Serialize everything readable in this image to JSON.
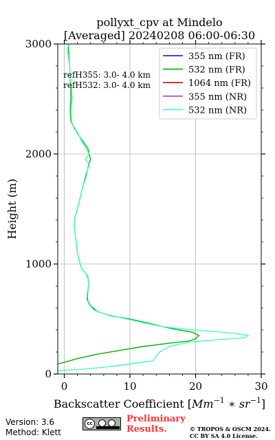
{
  "chart_data": {
    "type": "line",
    "title_line1": "pollyxt_cpv at Mindelo",
    "title_line2": "[Averaged] 20240208 06:00-06:30",
    "xlabel_prefix": "Backscatter Coefficient [",
    "xlabel_math": "Mm",
    "xlabel_exp1": "−1",
    "xlabel_mid": " ∗ ",
    "xlabel_math2": "sr",
    "xlabel_exp2": "−1",
    "xlabel_suffix": "]",
    "ylabel": "Height (m)",
    "xlim": [
      -1,
      30
    ],
    "ylim": [
      0,
      3000
    ],
    "x_ticks": [
      0,
      10,
      20,
      30
    ],
    "x_tick_labels": [
      "0",
      "10",
      "20",
      "30"
    ],
    "y_ticks": [
      0,
      1000,
      2000,
      3000
    ],
    "y_tick_labels": [
      "0",
      "1000",
      "2000",
      "3000"
    ],
    "grid": true,
    "legend_position": "top-right",
    "annotations": [
      "refH355:  3.0- 4.0 km",
      "refH532:  3.0- 4.0 km"
    ],
    "series": [
      {
        "name": "355 nm (FR)",
        "color": "#0000ff",
        "points": []
      },
      {
        "name": "532 nm (FR)",
        "color": "#00b300",
        "points": [
          [
            -1.0,
            90
          ],
          [
            0.2,
            110
          ],
          [
            2.0,
            140
          ],
          [
            5.0,
            180
          ],
          [
            8.0,
            210
          ],
          [
            12.0,
            250
          ],
          [
            16.0,
            280
          ],
          [
            19.0,
            300
          ],
          [
            20.0,
            320
          ],
          [
            20.5,
            350
          ],
          [
            19.5,
            380
          ],
          [
            17.5,
            400
          ],
          [
            15.0,
            430
          ],
          [
            13.0,
            460
          ],
          [
            10.0,
            500
          ],
          [
            7.0,
            530
          ],
          [
            5.0,
            570
          ],
          [
            4.0,
            620
          ],
          [
            3.6,
            660
          ],
          [
            3.5,
            700
          ],
          [
            3.6,
            760
          ],
          [
            3.7,
            820
          ],
          [
            3.6,
            880
          ],
          [
            3.2,
            920
          ],
          [
            2.7,
            950
          ],
          [
            2.4,
            1000
          ],
          [
            2.2,
            1050
          ],
          [
            2.0,
            1100
          ],
          [
            1.8,
            1200
          ],
          [
            1.6,
            1300
          ],
          [
            1.5,
            1350
          ],
          [
            1.6,
            1420
          ],
          [
            2.0,
            1500
          ],
          [
            2.4,
            1600
          ],
          [
            2.8,
            1700
          ],
          [
            3.3,
            1800
          ],
          [
            3.7,
            1900
          ],
          [
            4.0,
            1950
          ],
          [
            3.6,
            2050
          ],
          [
            3.0,
            2100
          ],
          [
            2.4,
            2150
          ],
          [
            1.9,
            2200
          ],
          [
            1.4,
            2250
          ],
          [
            1.0,
            2300
          ],
          [
            0.9,
            2400
          ],
          [
            1.0,
            2500
          ],
          [
            1.0,
            2600
          ],
          [
            0.9,
            2700
          ],
          [
            0.8,
            2800
          ],
          [
            0.7,
            2900
          ],
          [
            0.6,
            3000
          ]
        ]
      },
      {
        "name": "1064 nm (FR)",
        "color": "#dd0000",
        "points": []
      },
      {
        "name": "355 nm (NR)",
        "color": "#a040e0",
        "points": []
      },
      {
        "name": "532 nm (NR)",
        "color": "#40ffc0",
        "points": [
          [
            -1.0,
            30
          ],
          [
            2.0,
            40
          ],
          [
            5.0,
            55
          ],
          [
            8.0,
            75
          ],
          [
            11.0,
            100
          ],
          [
            13.5,
            120
          ],
          [
            14.0,
            160
          ],
          [
            14.5,
            200
          ],
          [
            16.0,
            250
          ],
          [
            19.0,
            290
          ],
          [
            23.0,
            310
          ],
          [
            27.5,
            330
          ],
          [
            28.0,
            350
          ],
          [
            26.0,
            370
          ],
          [
            22.0,
            390
          ],
          [
            18.0,
            410
          ],
          [
            15.0,
            430
          ],
          [
            12.5,
            460
          ],
          [
            9.5,
            500
          ],
          [
            6.5,
            540
          ],
          [
            4.5,
            580
          ],
          [
            3.8,
            630
          ],
          [
            3.4,
            680
          ],
          [
            3.5,
            740
          ],
          [
            3.7,
            800
          ],
          [
            3.6,
            870
          ],
          [
            3.2,
            920
          ],
          [
            2.7,
            950
          ],
          [
            2.4,
            1000
          ],
          [
            2.2,
            1050
          ],
          [
            2.0,
            1100
          ],
          [
            1.8,
            1200
          ],
          [
            1.6,
            1300
          ],
          [
            1.5,
            1350
          ],
          [
            1.6,
            1420
          ],
          [
            2.0,
            1500
          ],
          [
            2.4,
            1600
          ],
          [
            2.8,
            1700
          ],
          [
            3.2,
            1800
          ],
          [
            3.8,
            1900
          ],
          [
            3.2,
            1950
          ],
          [
            3.8,
            2000
          ],
          [
            2.6,
            2120
          ],
          [
            2.0,
            2200
          ],
          [
            1.5,
            2230
          ],
          [
            1.1,
            2300
          ],
          [
            1.0,
            2400
          ],
          [
            1.2,
            2500
          ],
          [
            1.1,
            2600
          ],
          [
            0.9,
            2700
          ],
          [
            0.8,
            2800
          ],
          [
            0.6,
            2900
          ],
          [
            0.4,
            2950
          ],
          [
            0.7,
            3000
          ]
        ]
      }
    ]
  },
  "footer": {
    "version": "Version: 3.6",
    "method": "Method: Klett",
    "preliminary_line1": "Preliminary",
    "preliminary_line2": "Results.",
    "copyright_line1": "© TROPOS & OSCM 2024.",
    "copyright_line2": "CC BY SA 4.0 License.",
    "license_badge_text": "cc"
  }
}
